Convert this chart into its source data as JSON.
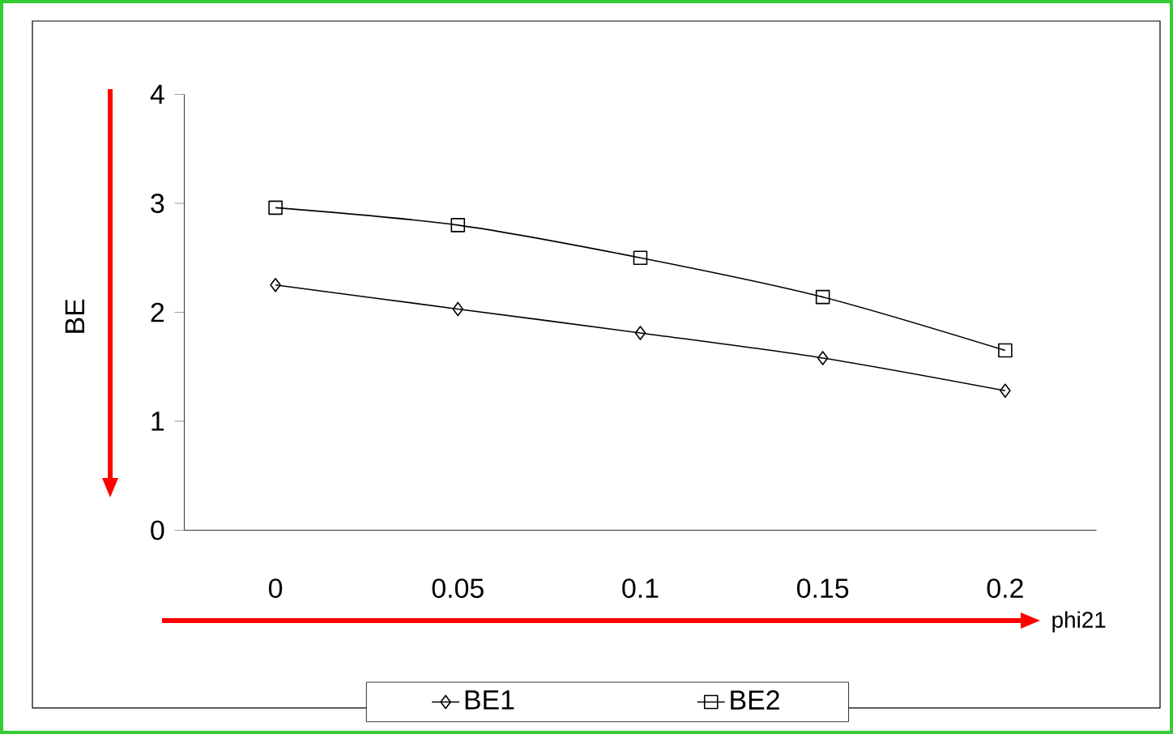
{
  "chart_data": {
    "type": "line",
    "xlabel": "phi21",
    "ylabel": "BE",
    "categories": [
      "0",
      "0.05",
      "0.1",
      "0.15",
      "0.2"
    ],
    "series": [
      {
        "name": "BE1",
        "color": "#000000",
        "marker": "diamond",
        "values": [
          2.25,
          2.03,
          1.81,
          1.58,
          1.28
        ]
      },
      {
        "name": "BE2",
        "color": "#000000",
        "marker": "square",
        "values": [
          2.96,
          2.8,
          2.5,
          2.14,
          1.65
        ]
      }
    ],
    "ylim": [
      0,
      4
    ],
    "yticks": [
      0,
      1,
      2,
      3,
      4
    ],
    "grid": false,
    "legend": "bottom"
  }
}
